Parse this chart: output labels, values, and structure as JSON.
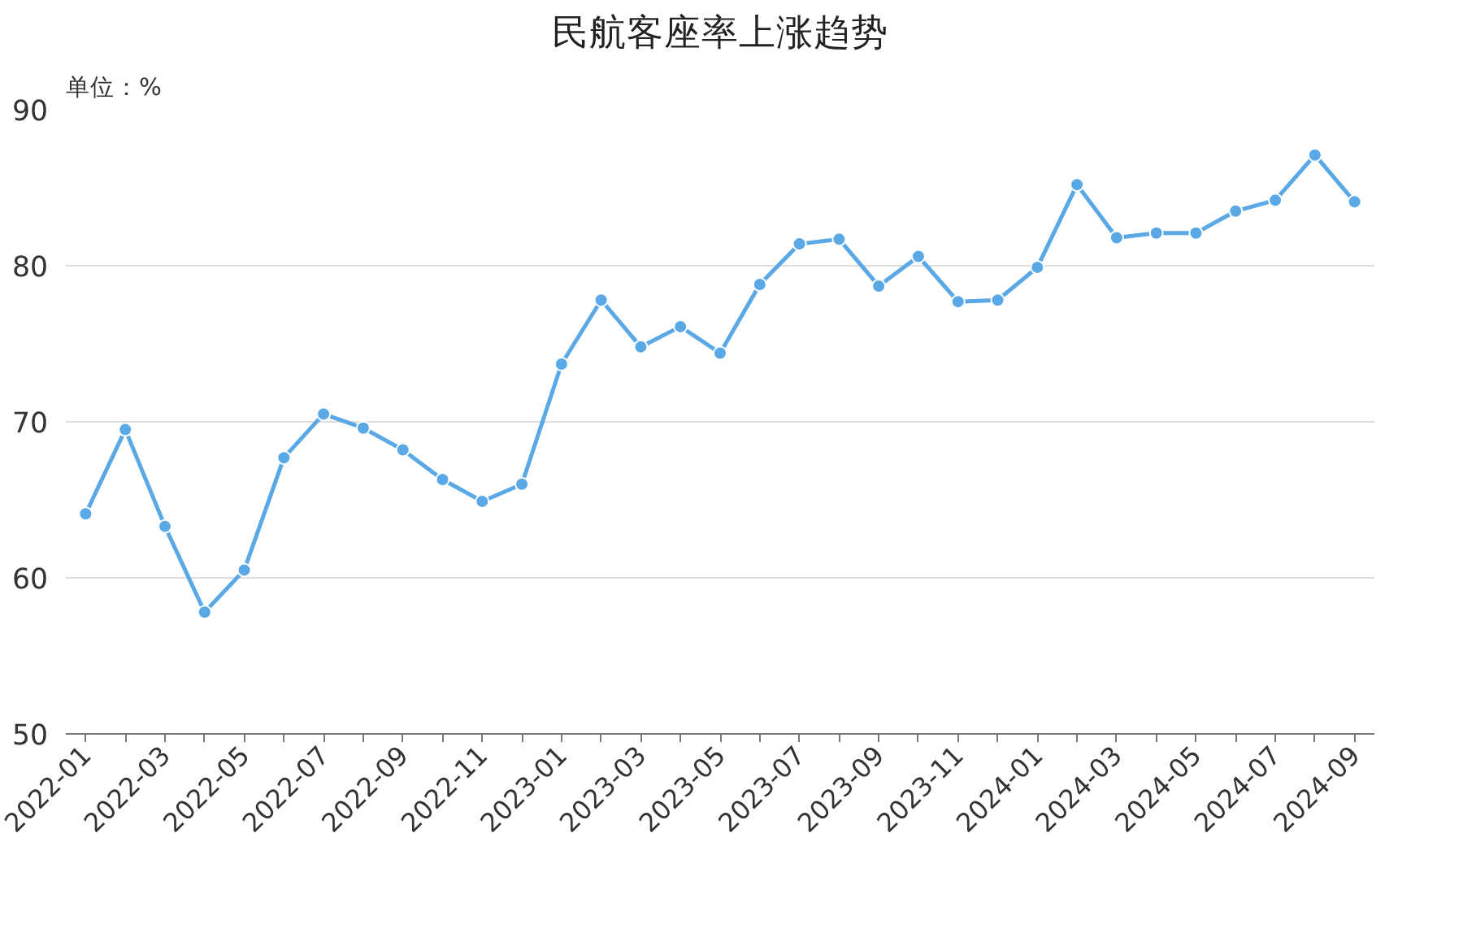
{
  "chart_data": {
    "type": "line",
    "title": "民航客座率上涨趋势",
    "ylabel": "单位：%",
    "categories": [
      "2022-01",
      null,
      "2022-03",
      null,
      "2022-05",
      null,
      "2022-07",
      null,
      "2022-09",
      null,
      "2022-11",
      null,
      "2023-01",
      null,
      "2023-03",
      null,
      "2023-05",
      null,
      "2023-07",
      null,
      "2023-09",
      null,
      "2023-11",
      null,
      "2024-01",
      null,
      "2024-03",
      null,
      "2024-05",
      null,
      "2024-07",
      null,
      "2024-09"
    ],
    "series": [
      {
        "color": "#5aa9e6",
        "values": [
          64.1,
          69.5,
          63.3,
          57.8,
          60.5,
          67.7,
          70.5,
          69.6,
          68.2,
          66.3,
          64.9,
          66.0,
          73.7,
          77.8,
          74.8,
          76.1,
          74.4,
          78.8,
          81.4,
          81.7,
          78.7,
          80.6,
          77.7,
          77.8,
          79.9,
          85.2,
          81.8,
          82.1,
          82.1,
          83.5,
          84.2,
          87.1,
          84.1
        ]
      }
    ],
    "ylim": [
      50,
      90
    ],
    "yticks": [
      50,
      60,
      70,
      80,
      90
    ],
    "grid": "y",
    "marker": "circle",
    "line_style": "solid"
  }
}
